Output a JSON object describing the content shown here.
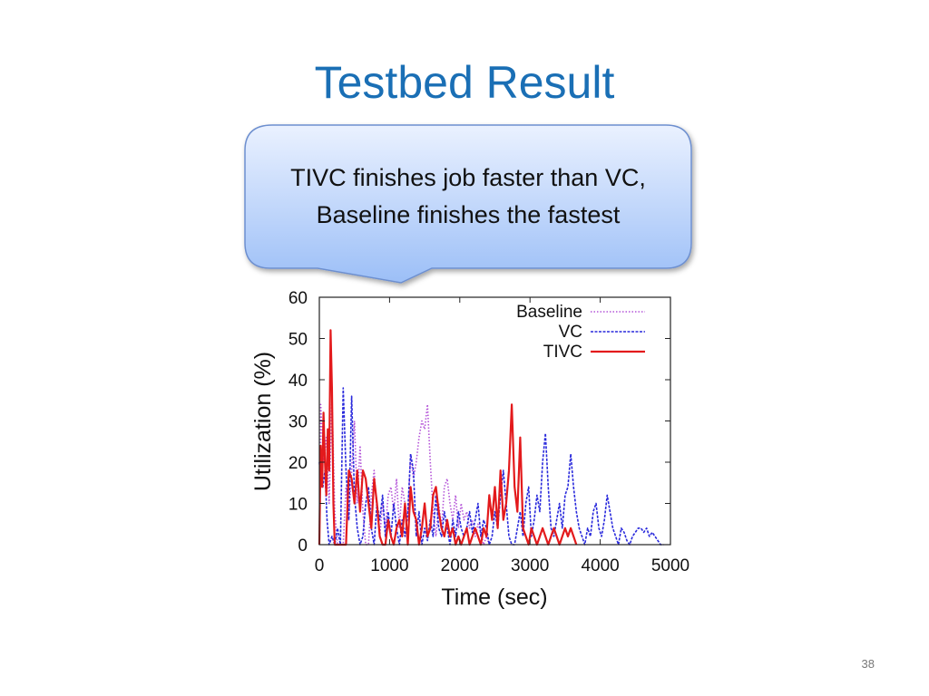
{
  "slide": {
    "title": "Testbed Result",
    "callout_line1": "TIVC finishes job faster than VC,",
    "callout_line2": "Baseline finishes the fastest",
    "page_number": "38"
  },
  "chart_data": {
    "type": "line",
    "xlabel": "Time (sec)",
    "ylabel": "Utilization (%)",
    "xlim": [
      0,
      5000
    ],
    "ylim": [
      0,
      60
    ],
    "xticks": [
      0,
      1000,
      2000,
      3000,
      4000,
      5000
    ],
    "yticks": [
      0,
      10,
      20,
      30,
      40,
      50,
      60
    ],
    "legend_position": "top-right",
    "grid": false,
    "series": [
      {
        "name": "Baseline",
        "style": "dotted",
        "color": "#b455d8",
        "points": [
          [
            0,
            0
          ],
          [
            20,
            34
          ],
          [
            60,
            20
          ],
          [
            100,
            26
          ],
          [
            140,
            10
          ],
          [
            180,
            36
          ],
          [
            220,
            8
          ],
          [
            260,
            0
          ],
          [
            300,
            0
          ],
          [
            340,
            0
          ],
          [
            380,
            14
          ],
          [
            420,
            6
          ],
          [
            460,
            18
          ],
          [
            500,
            30
          ],
          [
            540,
            10
          ],
          [
            580,
            24
          ],
          [
            620,
            8
          ],
          [
            660,
            0
          ],
          [
            700,
            0
          ],
          [
            740,
            12
          ],
          [
            780,
            18
          ],
          [
            820,
            8
          ],
          [
            860,
            2
          ],
          [
            900,
            10
          ],
          [
            940,
            4
          ],
          [
            980,
            12
          ],
          [
            1020,
            14
          ],
          [
            1060,
            8
          ],
          [
            1100,
            16
          ],
          [
            1140,
            4
          ],
          [
            1180,
            14
          ],
          [
            1220,
            10
          ],
          [
            1260,
            6
          ],
          [
            1300,
            22
          ],
          [
            1340,
            16
          ],
          [
            1380,
            20
          ],
          [
            1420,
            26
          ],
          [
            1460,
            30
          ],
          [
            1500,
            28
          ],
          [
            1540,
            34
          ],
          [
            1580,
            20
          ],
          [
            1620,
            8
          ],
          [
            1660,
            2
          ],
          [
            1700,
            10
          ],
          [
            1740,
            4
          ],
          [
            1780,
            14
          ],
          [
            1820,
            16
          ],
          [
            1860,
            10
          ],
          [
            1900,
            6
          ],
          [
            1940,
            12
          ],
          [
            1980,
            4
          ],
          [
            2020,
            10
          ],
          [
            2060,
            6
          ],
          [
            2100,
            8
          ],
          [
            2140,
            4
          ],
          [
            2180,
            6
          ],
          [
            2220,
            2
          ],
          [
            2260,
            5
          ],
          [
            2300,
            3
          ],
          [
            2340,
            0
          ],
          [
            2380,
            2
          ],
          [
            2420,
            0
          ]
        ]
      },
      {
        "name": "VC",
        "style": "dashed",
        "color": "#2a2adc",
        "points": [
          [
            0,
            20
          ],
          [
            20,
            16
          ],
          [
            50,
            14
          ],
          [
            80,
            18
          ],
          [
            110,
            6
          ],
          [
            140,
            0
          ],
          [
            180,
            2
          ],
          [
            220,
            0
          ],
          [
            260,
            4
          ],
          [
            300,
            0
          ],
          [
            340,
            38
          ],
          [
            380,
            18
          ],
          [
            420,
            6
          ],
          [
            460,
            36
          ],
          [
            500,
            12
          ],
          [
            540,
            4
          ],
          [
            580,
            0
          ],
          [
            620,
            2
          ],
          [
            660,
            10
          ],
          [
            700,
            14
          ],
          [
            740,
            4
          ],
          [
            780,
            0
          ],
          [
            820,
            10
          ],
          [
            860,
            6
          ],
          [
            900,
            12
          ],
          [
            940,
            2
          ],
          [
            980,
            8
          ],
          [
            1020,
            2
          ],
          [
            1060,
            10
          ],
          [
            1100,
            4
          ],
          [
            1140,
            0
          ],
          [
            1180,
            6
          ],
          [
            1220,
            2
          ],
          [
            1260,
            8
          ],
          [
            1300,
            22
          ],
          [
            1340,
            18
          ],
          [
            1380,
            2
          ],
          [
            1420,
            8
          ],
          [
            1460,
            0
          ],
          [
            1500,
            4
          ],
          [
            1540,
            1
          ],
          [
            1580,
            6
          ],
          [
            1620,
            2
          ],
          [
            1660,
            12
          ],
          [
            1700,
            4
          ],
          [
            1740,
            2
          ],
          [
            1780,
            8
          ],
          [
            1820,
            4
          ],
          [
            1860,
            0
          ],
          [
            1900,
            6
          ],
          [
            1940,
            2
          ],
          [
            1980,
            8
          ],
          [
            2020,
            4
          ],
          [
            2060,
            2
          ],
          [
            2100,
            4
          ],
          [
            2140,
            8
          ],
          [
            2180,
            3
          ],
          [
            2220,
            6
          ],
          [
            2260,
            10
          ],
          [
            2300,
            2
          ],
          [
            2340,
            6
          ],
          [
            2380,
            4
          ],
          [
            2420,
            0
          ],
          [
            2460,
            2
          ],
          [
            2500,
            8
          ],
          [
            2540,
            4
          ],
          [
            2580,
            12
          ],
          [
            2620,
            18
          ],
          [
            2660,
            10
          ],
          [
            2700,
            2
          ],
          [
            2740,
            0
          ],
          [
            2780,
            0
          ],
          [
            2820,
            4
          ],
          [
            2860,
            8
          ],
          [
            2900,
            2
          ],
          [
            2940,
            10
          ],
          [
            2980,
            14
          ],
          [
            3020,
            2
          ],
          [
            3060,
            6
          ],
          [
            3100,
            12
          ],
          [
            3140,
            8
          ],
          [
            3180,
            20
          ],
          [
            3220,
            27
          ],
          [
            3260,
            14
          ],
          [
            3300,
            4
          ],
          [
            3340,
            2
          ],
          [
            3380,
            6
          ],
          [
            3420,
            10
          ],
          [
            3460,
            4
          ],
          [
            3500,
            12
          ],
          [
            3540,
            14
          ],
          [
            3580,
            22
          ],
          [
            3620,
            14
          ],
          [
            3660,
            8
          ],
          [
            3700,
            4
          ],
          [
            3740,
            2
          ],
          [
            3780,
            0
          ],
          [
            3820,
            4
          ],
          [
            3860,
            2
          ],
          [
            3900,
            8
          ],
          [
            3940,
            10
          ],
          [
            3980,
            4
          ],
          [
            4020,
            2
          ],
          [
            4060,
            6
          ],
          [
            4100,
            12
          ],
          [
            4140,
            8
          ],
          [
            4180,
            4
          ],
          [
            4220,
            2
          ],
          [
            4260,
            0
          ],
          [
            4300,
            4
          ],
          [
            4340,
            3
          ],
          [
            4380,
            1
          ],
          [
            4420,
            0
          ],
          [
            4460,
            2
          ],
          [
            4500,
            3
          ],
          [
            4540,
            4
          ],
          [
            4580,
            4
          ],
          [
            4620,
            3
          ],
          [
            4660,
            4
          ],
          [
            4700,
            2
          ],
          [
            4740,
            3
          ],
          [
            4780,
            2
          ],
          [
            4820,
            1
          ],
          [
            4860,
            0
          ],
          [
            4900,
            0
          ]
        ]
      },
      {
        "name": "TIVC",
        "style": "solid",
        "color": "#e31a1c",
        "points": [
          [
            0,
            0
          ],
          [
            20,
            24
          ],
          [
            40,
            14
          ],
          [
            60,
            32
          ],
          [
            80,
            20
          ],
          [
            100,
            12
          ],
          [
            120,
            28
          ],
          [
            140,
            18
          ],
          [
            160,
            52
          ],
          [
            180,
            38
          ],
          [
            200,
            10
          ],
          [
            220,
            0
          ],
          [
            240,
            0
          ],
          [
            260,
            0
          ],
          [
            280,
            0
          ],
          [
            300,
            0
          ],
          [
            340,
            0
          ],
          [
            380,
            0
          ],
          [
            420,
            18
          ],
          [
            460,
            16
          ],
          [
            500,
            10
          ],
          [
            540,
            18
          ],
          [
            580,
            8
          ],
          [
            620,
            18
          ],
          [
            660,
            16
          ],
          [
            700,
            10
          ],
          [
            740,
            4
          ],
          [
            780,
            16
          ],
          [
            820,
            10
          ],
          [
            860,
            2
          ],
          [
            900,
            0
          ],
          [
            940,
            0
          ],
          [
            980,
            6
          ],
          [
            1020,
            2
          ],
          [
            1060,
            0
          ],
          [
            1100,
            4
          ],
          [
            1140,
            6
          ],
          [
            1180,
            2
          ],
          [
            1220,
            10
          ],
          [
            1260,
            0
          ],
          [
            1300,
            14
          ],
          [
            1340,
            8
          ],
          [
            1380,
            6
          ],
          [
            1420,
            0
          ],
          [
            1460,
            4
          ],
          [
            1500,
            10
          ],
          [
            1540,
            2
          ],
          [
            1580,
            4
          ],
          [
            1620,
            12
          ],
          [
            1660,
            14
          ],
          [
            1700,
            8
          ],
          [
            1740,
            4
          ],
          [
            1780,
            2
          ],
          [
            1820,
            6
          ],
          [
            1860,
            2
          ],
          [
            1900,
            4
          ],
          [
            1940,
            0
          ],
          [
            1980,
            2
          ],
          [
            2020,
            0
          ],
          [
            2060,
            2
          ],
          [
            2100,
            4
          ],
          [
            2140,
            0
          ],
          [
            2180,
            2
          ],
          [
            2220,
            4
          ],
          [
            2260,
            2
          ],
          [
            2300,
            0
          ],
          [
            2340,
            4
          ],
          [
            2380,
            2
          ],
          [
            2420,
            12
          ],
          [
            2460,
            6
          ],
          [
            2500,
            14
          ],
          [
            2540,
            4
          ],
          [
            2580,
            18
          ],
          [
            2620,
            6
          ],
          [
            2660,
            10
          ],
          [
            2700,
            18
          ],
          [
            2740,
            34
          ],
          [
            2780,
            14
          ],
          [
            2820,
            8
          ],
          [
            2860,
            26
          ],
          [
            2900,
            4
          ],
          [
            2940,
            2
          ],
          [
            2980,
            0
          ],
          [
            3020,
            4
          ],
          [
            3060,
            2
          ],
          [
            3100,
            0
          ],
          [
            3140,
            2
          ],
          [
            3180,
            4
          ],
          [
            3220,
            2
          ],
          [
            3260,
            0
          ],
          [
            3300,
            2
          ],
          [
            3340,
            4
          ],
          [
            3380,
            2
          ],
          [
            3420,
            0
          ],
          [
            3460,
            2
          ],
          [
            3500,
            4
          ],
          [
            3540,
            2
          ],
          [
            3580,
            4
          ],
          [
            3620,
            2
          ],
          [
            3660,
            0
          ]
        ]
      }
    ]
  }
}
